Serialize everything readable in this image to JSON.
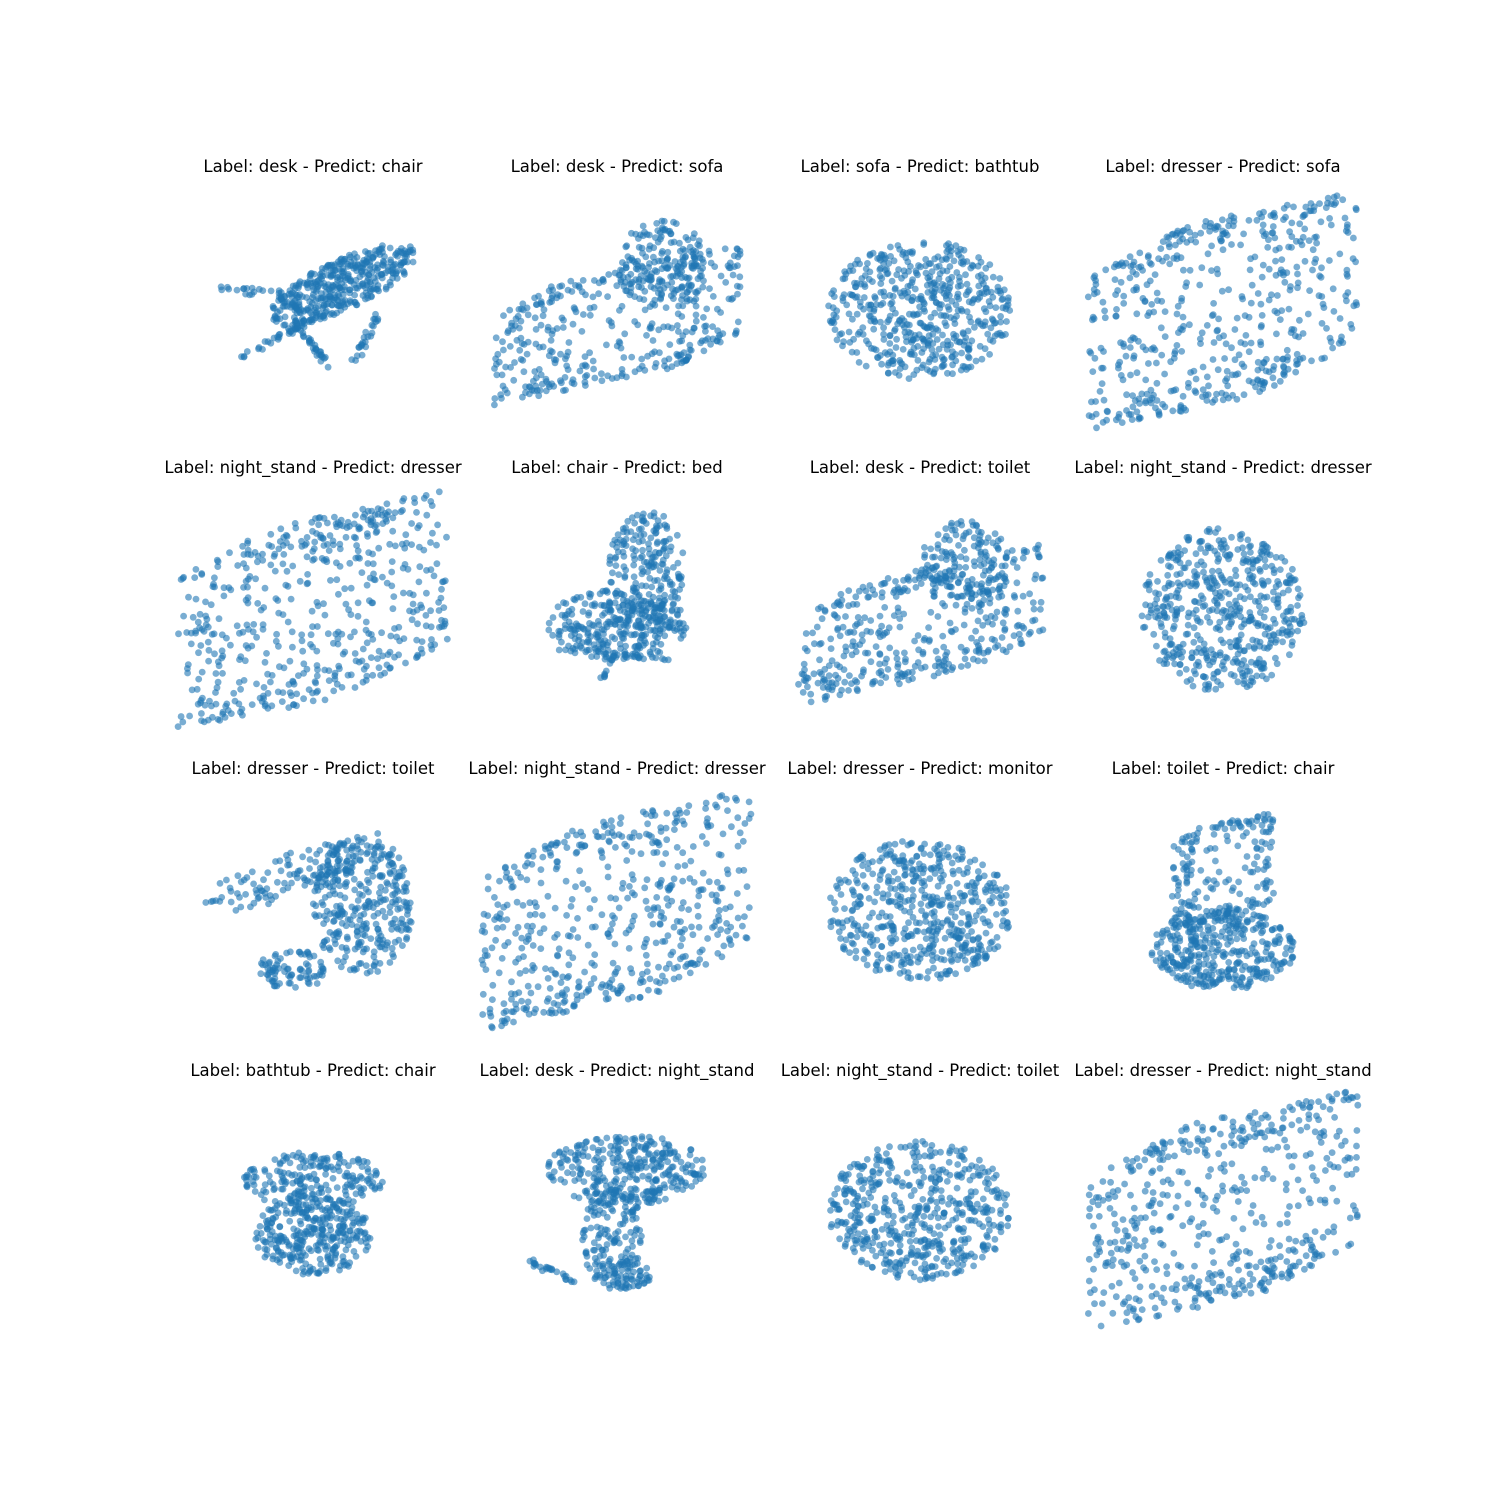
{
  "chart_data": {
    "type": "scatter",
    "layout": "4x4 grid of 3D point-cloud scatter subplots",
    "axes_visible": false,
    "grid": false,
    "marker_color": "#1f77b4",
    "marker_alpha": 0.6,
    "panels": [
      {
        "title": "Label: desk - Predict: chair",
        "label": "desk",
        "predict": "chair",
        "shape": "table"
      },
      {
        "title": "Label: desk - Predict: sofa",
        "label": "desk",
        "predict": "sofa",
        "shape": "sofa"
      },
      {
        "title": "Label: sofa - Predict: bathtub",
        "label": "sofa",
        "predict": "bathtub",
        "shape": "blob"
      },
      {
        "title": "Label: dresser - Predict: sofa",
        "label": "dresser",
        "predict": "sofa",
        "shape": "box"
      },
      {
        "title": "Label: night_stand - Predict: dresser",
        "label": "night_stand",
        "predict": "dresser",
        "shape": "box"
      },
      {
        "title": "Label: chair - Predict: bed",
        "label": "chair",
        "predict": "bed",
        "shape": "swivel"
      },
      {
        "title": "Label: desk - Predict: toilet",
        "label": "desk",
        "predict": "toilet",
        "shape": "sofa"
      },
      {
        "title": "Label: night_stand - Predict: dresser",
        "label": "night_stand",
        "predict": "dresser",
        "shape": "hexbox"
      },
      {
        "title": "Label: dresser - Predict: toilet",
        "label": "dresser",
        "predict": "toilet",
        "shape": "wedge"
      },
      {
        "title": "Label: night_stand - Predict: dresser",
        "label": "night_stand",
        "predict": "dresser",
        "shape": "box"
      },
      {
        "title": "Label: dresser - Predict: monitor",
        "label": "dresser",
        "predict": "monitor",
        "shape": "blob"
      },
      {
        "title": "Label: toilet - Predict: chair",
        "label": "toilet",
        "predict": "chair",
        "shape": "toilet"
      },
      {
        "title": "Label: bathtub - Predict: chair",
        "label": "bathtub",
        "predict": "chair",
        "shape": "tub"
      },
      {
        "title": "Label: desk - Predict: night_stand",
        "label": "desk",
        "predict": "night_stand",
        "shape": "deskL"
      },
      {
        "title": "Label: night_stand - Predict: toilet",
        "label": "night_stand",
        "predict": "toilet",
        "shape": "blob"
      },
      {
        "title": "Label: dresser - Predict: night_stand",
        "label": "dresser",
        "predict": "night_stand",
        "shape": "box"
      }
    ]
  }
}
